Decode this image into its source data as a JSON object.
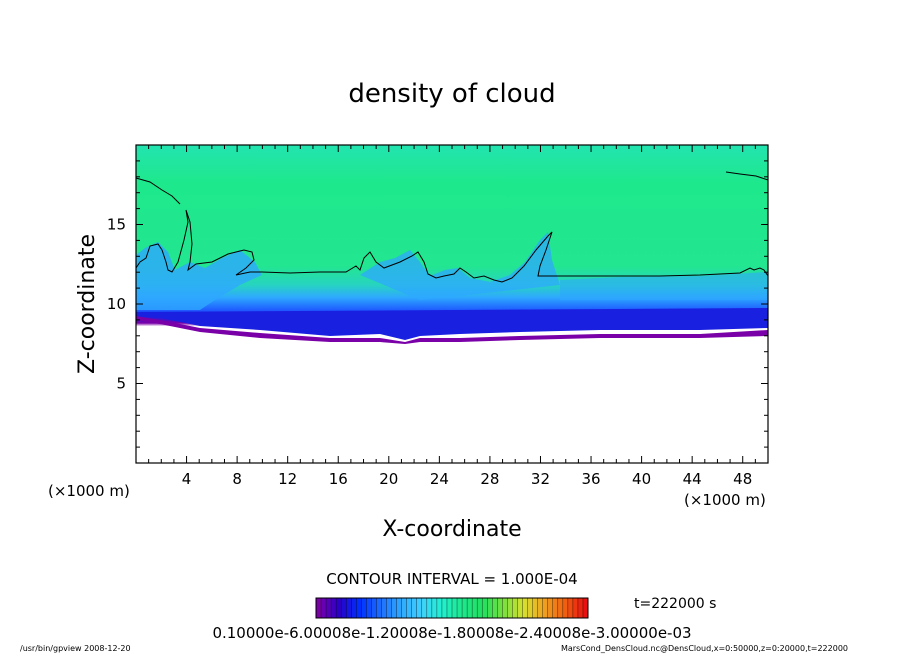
{
  "chart_data": {
    "type": "heatmap",
    "title": "density of cloud",
    "xlabel": "X-coordinate",
    "ylabel": "Z-coordinate",
    "x_unit": "(×1000 m)",
    "y_unit": "(×1000 m)",
    "xlim": [
      0,
      50
    ],
    "ylim": [
      0,
      20
    ],
    "x_ticks": [
      "4",
      "8",
      "12",
      "16",
      "20",
      "24",
      "28",
      "32",
      "36",
      "40",
      "44",
      "48"
    ],
    "y_ticks": [
      "5",
      "10",
      "15"
    ],
    "contour_interval_label": "CONTOUR INTERVAL = 1.000E-04",
    "time_label": "t=222000 s",
    "colorbar_labels_text": "0.10000e-6.00008e-1.20008e-1.80008e-2.40008e-3.00000e-03",
    "colorbar_colors": [
      "#7a00a8",
      "#2a00c8",
      "#0030ff",
      "#1e6cff",
      "#2ea8ff",
      "#3fd0ff",
      "#22f0d0",
      "#1ee88c",
      "#22e060",
      "#7ae040",
      "#d8e030",
      "#f0a020",
      "#f06010",
      "#e81010"
    ],
    "field_colors": {
      "upper": "#1ee88c",
      "upper_edge": "#22e4b0",
      "mid": "#2ea8ff",
      "low": "#1e5aff",
      "deep": "#1a20e0",
      "base": "#7a00a8",
      "empty": "#ffffff"
    },
    "cloud_base_km": 8.4,
    "contour_level_km": 11.8,
    "footer_left": "/usr/bin/gpview  2008-12-20",
    "footer_right": "MarsCond_DensCloud.nc@DensCloud,x=0:50000,z=0:20000,t=222000"
  }
}
